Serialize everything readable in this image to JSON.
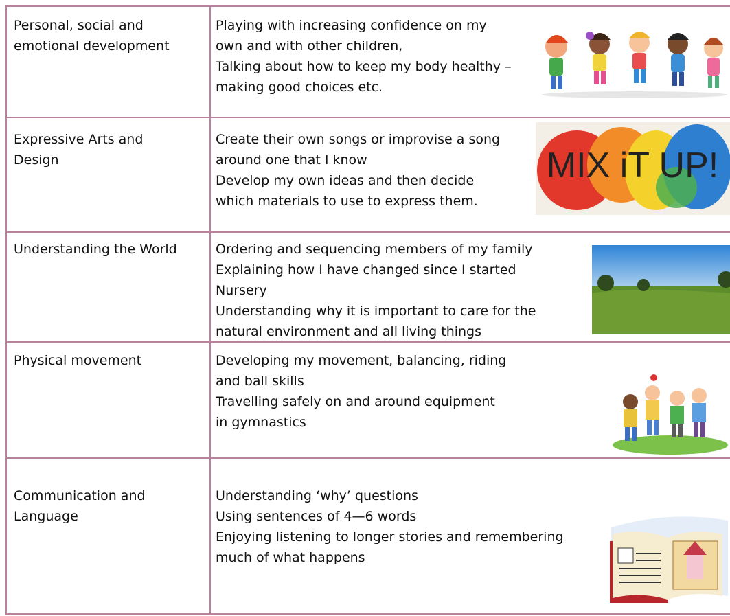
{
  "table": {
    "rows": [
      {
        "area": [
          "Personal, social and",
          "emotional development"
        ],
        "lines": [
          "Playing with increasing confidence on my",
          "own and with other children,",
          "Talking about how to keep my body healthy –",
          "making good choices etc."
        ]
      },
      {
        "area": [
          "Expressive Arts and",
          "Design"
        ],
        "lines": [
          "Create their own songs or improvise a song",
          "around one that I know",
          "Develop my own ideas and then decide",
          "which materials to use to express them."
        ],
        "image_text": "MIX iT UP!"
      },
      {
        "area": [
          "Understanding the World"
        ],
        "lines": [
          "Ordering and sequencing members of my family",
          "Explaining how I have changed since I started",
          "Nursery",
          "Understanding why it is important to care for the",
          "natural environment and all living things"
        ]
      },
      {
        "area": [
          "Physical movement"
        ],
        "lines": [
          "Developing my movement, balancing, riding",
          "and ball skills",
          "Travelling safely on and around equipment",
          "in gymnastics"
        ]
      },
      {
        "area": [
          "Communication and",
          "Language"
        ],
        "lines": [
          "Understanding ‘why’ questions",
          "Using sentences of 4—6 words",
          "Enjoying listening to longer stories and remembering",
          "much of what happens"
        ]
      }
    ]
  }
}
